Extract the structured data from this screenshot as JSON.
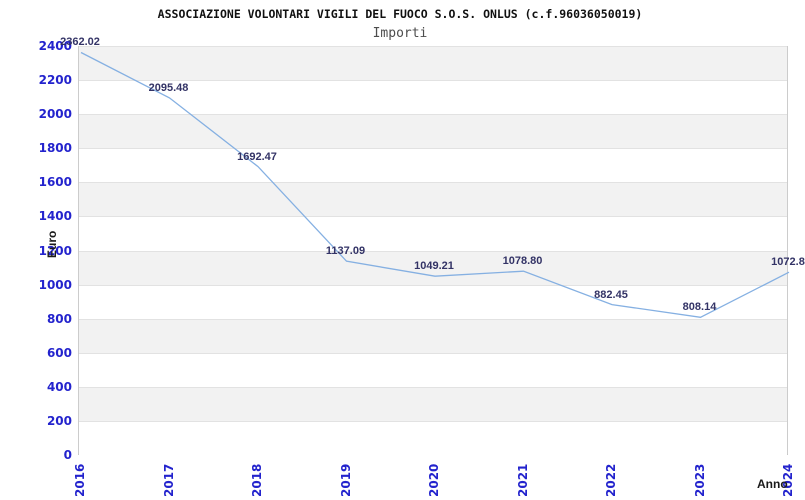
{
  "chart_data": {
    "type": "line",
    "title": "ASSOCIAZIONE VOLONTARI VIGILI DEL FUOCO S.O.S. ONLUS (c.f.96036050019)",
    "subtitle": "Importi",
    "xlabel": "Anno",
    "ylabel": "Euro",
    "x": [
      2016,
      2017,
      2018,
      2019,
      2020,
      2021,
      2022,
      2023,
      2024
    ],
    "series": [
      {
        "name": "Importi",
        "values": [
          2362.02,
          2095.48,
          1692.47,
          1137.09,
          1049.21,
          1078.8,
          882.45,
          808.14,
          1072.8
        ]
      }
    ],
    "point_labels": [
      "2362.02",
      "2095.48",
      "1692.47",
      "1137.09",
      "1049.21",
      "1078.80",
      "882.45",
      "808.14",
      "1072.8"
    ],
    "ylim": [
      0,
      2400
    ],
    "yticks": [
      0,
      200,
      400,
      600,
      800,
      1000,
      1200,
      1400,
      1600,
      1800,
      2000,
      2200,
      2400
    ],
    "grid": true,
    "legend_position": "none",
    "background_style": "alternating horizontal bands"
  },
  "colors": {
    "line": "#85b0e2",
    "tick_label": "#2323cd",
    "value_label": "#333366",
    "band_gray": "#f2f2f2",
    "band_white": "#ffffff",
    "gridline": "#e2e2e2",
    "title": "#111111",
    "subtitle": "#4d4d4d",
    "axis_title": "#1a1a1a",
    "frame": "#cccccc"
  }
}
